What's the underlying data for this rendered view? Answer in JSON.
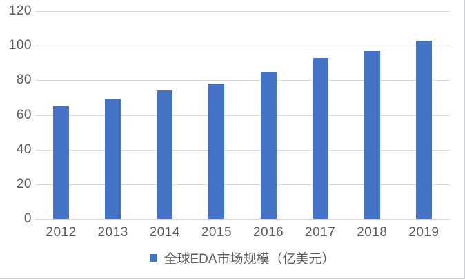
{
  "chart_data": {
    "type": "bar",
    "title": "",
    "categories": [
      "2012",
      "2013",
      "2014",
      "2015",
      "2016",
      "2017",
      "2018",
      "2019"
    ],
    "values": [
      65,
      69,
      74,
      78,
      85,
      93,
      97,
      103
    ],
    "series": [
      {
        "name": "全球EDA市场规模（亿美元）",
        "values": [
          65,
          69,
          74,
          78,
          85,
          93,
          97,
          103
        ]
      }
    ],
    "xlabel": "",
    "ylabel": "",
    "ylim": [
      0,
      120
    ],
    "yticks": [
      0,
      20,
      40,
      60,
      80,
      100,
      120
    ],
    "grid": true,
    "legend_position": "bottom",
    "legend": {
      "marker": "square",
      "label": "全球EDA市场规模（亿美元）"
    },
    "colors": {
      "bar": "#4472C4",
      "gridline": "#d9d9d9",
      "axis_line": "#d9d9d9",
      "tick_label": "#595959",
      "legend_text": "#595959",
      "background": "#ffffff"
    }
  }
}
